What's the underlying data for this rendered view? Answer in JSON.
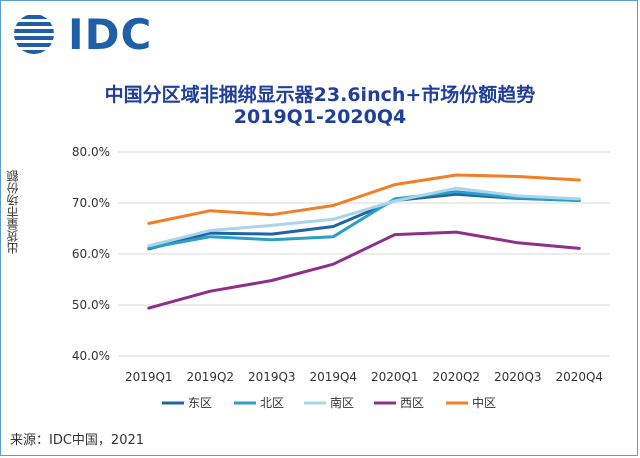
{
  "logo": {
    "text": "IDC",
    "icon": "globe-stripes-icon",
    "color": "#1f5fa8"
  },
  "source": "来源：IDC中国，2021",
  "chart_data": {
    "type": "line",
    "title": "中国分区域非捆绑显示器23.6inch+市场份额趋势",
    "subtitle": "2019Q1-2020Q4",
    "xlabel": "",
    "ylabel": "出货量市场份额",
    "categories": [
      "2019Q1",
      "2019Q2",
      "2019Q3",
      "2019Q4",
      "2020Q1",
      "2020Q2",
      "2020Q3",
      "2020Q4"
    ],
    "ylim": [
      40,
      80
    ],
    "yticks": [
      40,
      50,
      60,
      70,
      80
    ],
    "yticklabels": [
      "40.0%",
      "50.0%",
      "60.0%",
      "70.0%",
      "80.0%"
    ],
    "grid": true,
    "legend_position": "bottom",
    "series": [
      {
        "name": "东区",
        "color": "#1f64a8",
        "values": [
          61.0,
          64.1,
          63.9,
          65.4,
          70.5,
          71.7,
          70.9,
          70.5
        ]
      },
      {
        "name": "北区",
        "color": "#2aa0c7",
        "values": [
          61.2,
          63.4,
          62.8,
          63.4,
          70.8,
          72.2,
          71.0,
          70.5
        ]
      },
      {
        "name": "南区",
        "color": "#a9d4ea",
        "values": [
          61.6,
          64.6,
          65.6,
          66.8,
          70.4,
          72.9,
          71.4,
          70.8
        ]
      },
      {
        "name": "西区",
        "color": "#8e2f8a",
        "values": [
          49.4,
          52.7,
          54.8,
          58.0,
          63.8,
          64.3,
          62.2,
          61.1
        ]
      },
      {
        "name": "中区",
        "color": "#f07f25",
        "values": [
          66.0,
          68.5,
          67.7,
          69.5,
          73.6,
          75.5,
          75.2,
          74.5
        ]
      }
    ]
  }
}
